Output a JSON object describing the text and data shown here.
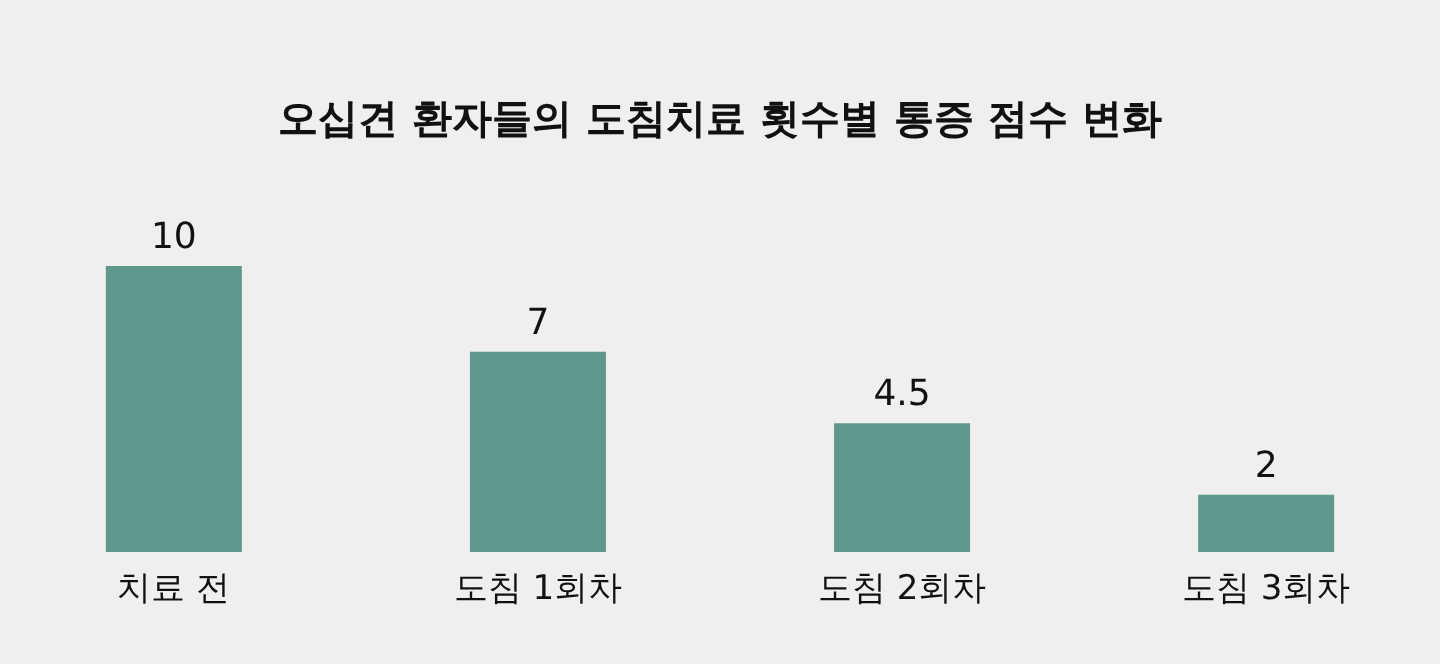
{
  "chart_data": {
    "type": "bar",
    "title": "오십견 환자들의 도침치료 횟수별 통증 점수 변화",
    "categories": [
      "치료 전",
      "도침 1회차",
      "도침 2회차",
      "도침 3회차"
    ],
    "values": [
      10,
      7,
      4.5,
      2
    ],
    "color": "#5f978d",
    "data_labels": true,
    "grid": false
  }
}
